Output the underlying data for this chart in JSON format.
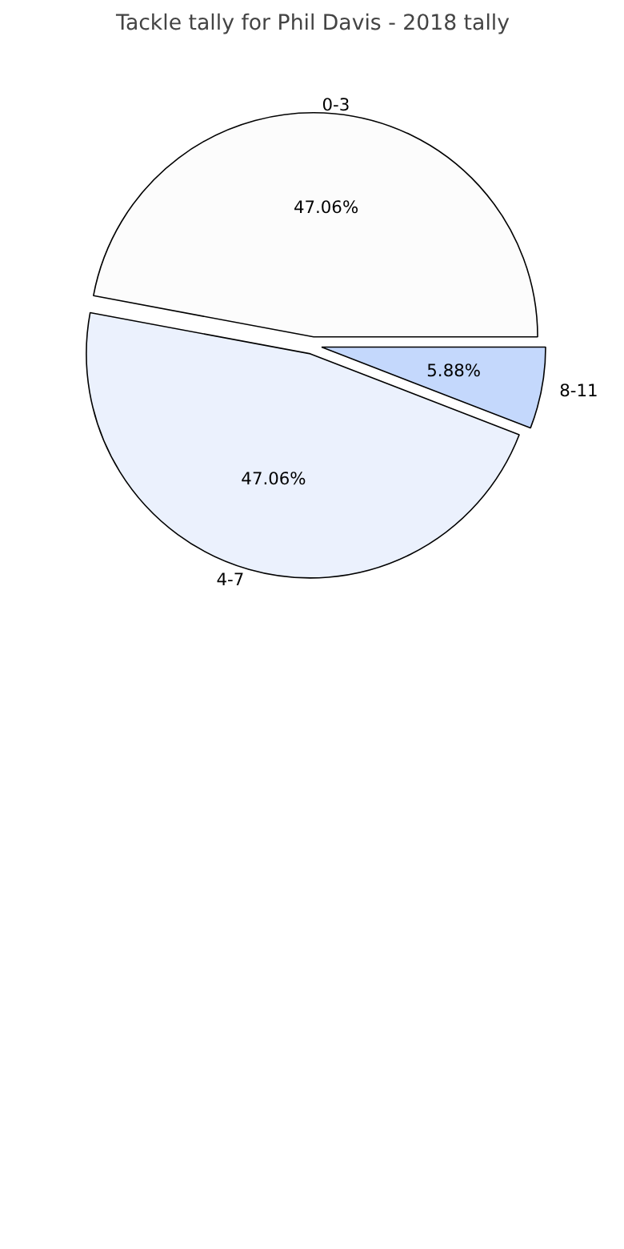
{
  "chart_data": {
    "type": "pie",
    "title": "Tackle tally for Phil Davis - 2018 tally",
    "categories": [
      "0-3",
      "4-7",
      "8-11"
    ],
    "values": [
      47.06,
      47.06,
      5.88
    ],
    "value_labels": [
      "47.06%",
      "47.06%",
      "5.88%"
    ],
    "colors": [
      "#fcfcfc",
      "#ebf1fd",
      "#c4d8fc"
    ]
  }
}
